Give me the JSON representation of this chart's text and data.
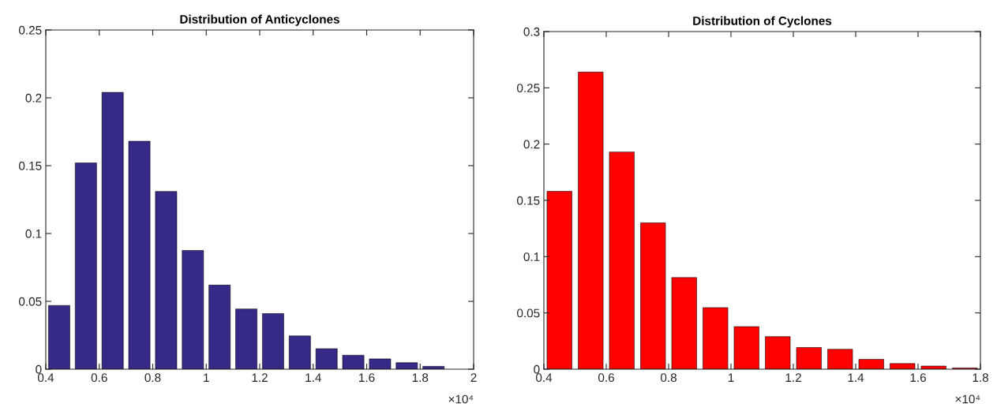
{
  "chart_data": [
    {
      "type": "histogram",
      "title": "Distribution of Anticyclones",
      "color": "#352a87",
      "bins": [
        0.4,
        0.5,
        0.6,
        0.7,
        0.8,
        0.9,
        1.0,
        1.1,
        1.2,
        1.3,
        1.4,
        1.5,
        1.6,
        1.7,
        1.8,
        1.9
      ],
      "values": [
        0.047,
        0.152,
        0.204,
        0.168,
        0.131,
        0.0875,
        0.062,
        0.0444,
        0.041,
        0.0245,
        0.0151,
        0.0103,
        0.0076,
        0.0048,
        0.0021
      ],
      "xlim": [
        0.4,
        2
      ],
      "xticks": [
        0.4,
        0.6,
        0.8,
        1,
        1.2,
        1.4,
        1.6,
        1.8,
        2
      ],
      "ylim": [
        0,
        0.25
      ],
      "yticks": [
        0,
        0.05,
        0.1,
        0.15,
        0.2,
        0.25
      ],
      "annotations": [
        "×10⁴"
      ],
      "grid": false,
      "legend": false
    },
    {
      "type": "histogram",
      "title": "Distribution of Cyclones",
      "color": "#ff0000",
      "bins": [
        0.4,
        0.5,
        0.6,
        0.7,
        0.8,
        0.9,
        1.0,
        1.1,
        1.2,
        1.3,
        1.4,
        1.5,
        1.6,
        1.7,
        1.8
      ],
      "values": [
        0.158,
        0.264,
        0.193,
        0.13,
        0.0814,
        0.0547,
        0.0378,
        0.029,
        0.0193,
        0.0177,
        0.0088,
        0.005,
        0.0028,
        0.0011
      ],
      "xlim": [
        0.4,
        1.8
      ],
      "xticks": [
        0.4,
        0.6,
        0.8,
        1,
        1.2,
        1.4,
        1.6,
        1.8
      ],
      "ylim": [
        0,
        0.3
      ],
      "yticks": [
        0,
        0.05,
        0.1,
        0.15,
        0.2,
        0.25,
        0.3
      ],
      "annotations": [
        "×10⁴"
      ],
      "grid": false,
      "legend": false
    }
  ]
}
